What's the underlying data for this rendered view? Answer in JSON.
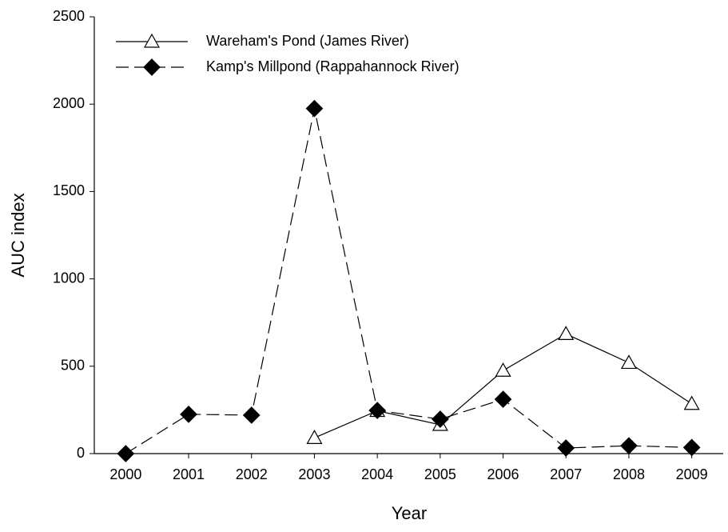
{
  "chart_data": {
    "type": "line",
    "x_label": "Year",
    "y_label": "AUC index",
    "categories": [
      "2000",
      "2001",
      "2002",
      "2003",
      "2004",
      "2005",
      "2006",
      "2007",
      "2008",
      "2009"
    ],
    "series": [
      {
        "name": "Wareham's Pond (James River)",
        "color": "#000000",
        "marker": "triangle-open",
        "dash": false,
        "values": [
          null,
          null,
          null,
          90,
          245,
          165,
          475,
          685,
          520,
          285
        ]
      },
      {
        "name": "Kamp's Millpond (Rappahannock River)",
        "color": "#000000",
        "marker": "diamond-filled",
        "dash": true,
        "values": [
          0,
          225,
          220,
          1975,
          247,
          197,
          311,
          32,
          45,
          35
        ]
      }
    ],
    "ylim": [
      0,
      2500
    ],
    "yticks": [
      0,
      500,
      1000,
      1500,
      2000,
      2500
    ],
    "grid": false,
    "legend": "top-left"
  }
}
